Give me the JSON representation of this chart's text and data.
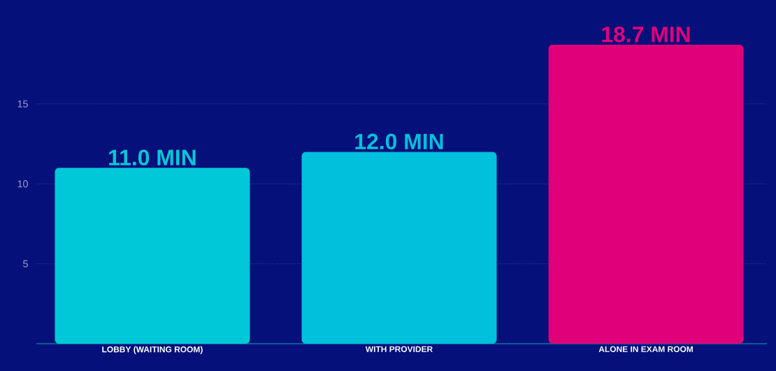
{
  "chart_data": {
    "type": "bar",
    "categories": [
      "LOBBY (WAITING ROOM)",
      "WITH PROVIDER",
      "ALONE IN EXAM ROOM"
    ],
    "values": [
      11.0,
      12.0,
      18.7
    ],
    "colors": [
      "#00c8d8",
      "#00c0dc",
      "#e0007a"
    ],
    "value_labels": [
      "11.0 MIN",
      "12.0 MIN",
      "18.7 MIN"
    ],
    "ylim": [
      0,
      21.5
    ],
    "yticks": [
      5,
      10,
      15
    ],
    "grid": "y"
  }
}
